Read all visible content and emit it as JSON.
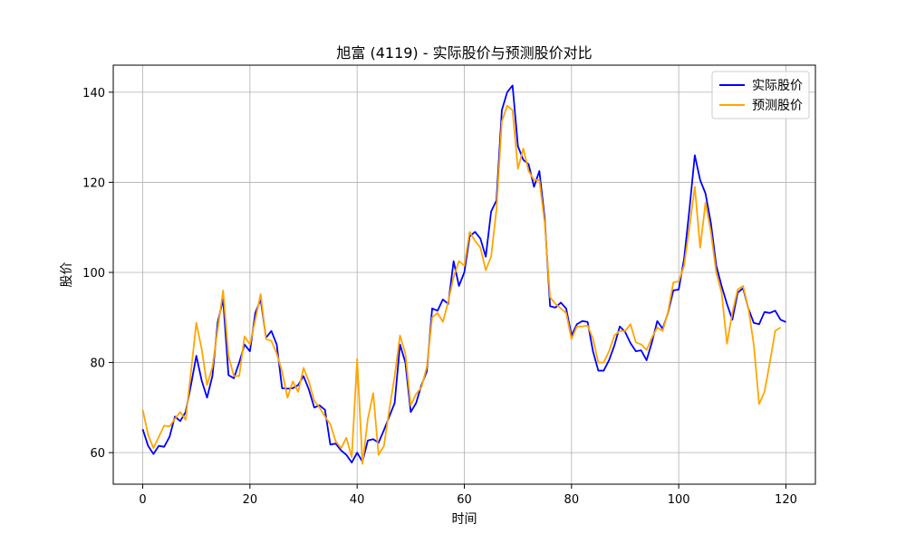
{
  "chart_data": {
    "type": "line",
    "title": "旭富 (4119) - 实际股价与预测股价对比",
    "xlabel": "时间",
    "ylabel": "股价",
    "xlim": [
      -5.5,
      125.5
    ],
    "ylim": [
      53,
      146
    ],
    "xticks": [
      0,
      20,
      40,
      60,
      80,
      100,
      120
    ],
    "yticks": [
      60,
      80,
      100,
      120,
      140
    ],
    "grid": true,
    "legend_position": "top-right",
    "series": [
      {
        "name": "实际股价",
        "color": "#0000ff",
        "values": [
          65.2,
          61.5,
          59.7,
          61.5,
          61.3,
          63.5,
          68.0,
          67.0,
          69.0,
          75.0,
          81.5,
          76.0,
          72.2,
          77.0,
          89.0,
          94.0,
          77.2,
          76.5,
          80.0,
          84.0,
          82.5,
          91.0,
          94.0,
          85.5,
          87.0,
          84.0,
          74.3,
          74.2,
          74.3,
          75.0,
          77.0,
          74.0,
          70.0,
          70.5,
          69.5,
          61.8,
          62.0,
          60.5,
          59.5,
          57.8,
          60.0,
          58.0,
          62.7,
          63.0,
          62.2,
          65.0,
          68.0,
          71.0,
          84.0,
          80.0,
          69.0,
          71.0,
          75.0,
          78.0,
          92.0,
          91.5,
          94.0,
          93.0,
          102.5,
          97.0,
          100.0,
          108.0,
          109.0,
          107.5,
          103.5,
          113.5,
          116.0,
          136.0,
          140.0,
          141.5,
          128.0,
          125.0,
          124.0,
          119.0,
          122.5,
          112.0,
          92.5,
          92.2,
          93.3,
          92.0,
          86.0,
          88.5,
          89.2,
          89.0,
          82.5,
          78.2,
          78.2,
          80.5,
          83.8,
          88.0,
          86.8,
          84.3,
          82.5,
          82.7,
          80.5,
          84.5,
          89.2,
          87.5,
          91.0,
          96.0,
          96.2,
          103.0,
          114.0,
          126.0,
          120.5,
          117.5,
          111.0,
          101.5,
          97.0,
          93.0,
          89.5,
          95.5,
          96.5,
          92.0,
          88.8,
          88.5,
          91.2,
          91.0,
          91.5,
          89.5,
          89.0
        ]
      },
      {
        "name": "预测股价",
        "color": "#ffa500",
        "values": [
          69.5,
          64.0,
          61.0,
          63.5,
          66.0,
          65.8,
          67.5,
          69.0,
          67.3,
          78.0,
          88.8,
          83.0,
          75.0,
          79.0,
          87.5,
          96.0,
          81.5,
          77.0,
          77.0,
          85.8,
          84.0,
          89.5,
          95.2,
          85.2,
          84.8,
          82.0,
          78.0,
          72.2,
          75.8,
          73.5,
          78.8,
          75.8,
          71.5,
          70.0,
          68.0,
          66.3,
          62.5,
          61.0,
          63.3,
          59.0,
          80.8,
          57.5,
          67.5,
          73.2,
          59.5,
          61.5,
          69.5,
          77.0,
          86.0,
          82.0,
          70.5,
          73.0,
          74.5,
          79.0,
          90.0,
          91.0,
          89.0,
          93.5,
          99.0,
          102.5,
          101.5,
          109.0,
          107.0,
          105.5,
          100.5,
          103.5,
          114.0,
          133.5,
          137.0,
          136.0,
          123.0,
          127.5,
          122.5,
          120.5,
          120.5,
          111.0,
          94.5,
          93.0,
          92.0,
          91.0,
          85.2,
          88.0,
          88.0,
          88.2,
          85.3,
          80.0,
          80.0,
          82.5,
          86.0,
          87.0,
          87.0,
          88.5,
          84.5,
          84.0,
          82.8,
          85.5,
          87.8,
          87.0,
          91.2,
          97.8,
          98.0,
          101.5,
          110.0,
          119.0,
          105.5,
          115.5,
          109.0,
          100.0,
          95.5,
          84.2,
          91.0,
          96.2,
          97.0,
          92.0,
          84.0,
          70.8,
          73.5,
          80.0,
          87.0,
          87.8
        ]
      }
    ]
  }
}
